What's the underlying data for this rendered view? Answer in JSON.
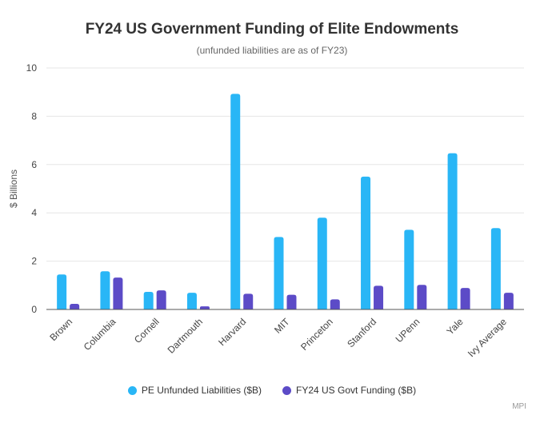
{
  "chart_data": {
    "type": "bar",
    "title": "FY24 US Government Funding of Elite Endowments",
    "subtitle": "(unfunded liabilities are as of FY23)",
    "xlabel": "",
    "ylabel": "$ Billions",
    "ylim": [
      0,
      10
    ],
    "yticks": [
      0,
      2,
      4,
      6,
      8,
      10
    ],
    "grid": true,
    "legend_position": "bottom",
    "categories": [
      "Brown",
      "Columbia",
      "Cornell",
      "Dartmouth",
      "Harvard",
      "MIT",
      "Princeton",
      "Stanford",
      "UPenn",
      "Yale",
      "Ivy Average"
    ],
    "series": [
      {
        "name": "PE Unfunded Liabilities ($B)",
        "color": "#29b6f6",
        "values": [
          1.45,
          1.58,
          0.73,
          0.69,
          8.93,
          3.0,
          3.8,
          5.5,
          3.3,
          6.47,
          3.37
        ]
      },
      {
        "name": "FY24 US Govt Funding ($B)",
        "color": "#5c4bc7",
        "values": [
          0.23,
          1.32,
          0.79,
          0.13,
          0.65,
          0.61,
          0.42,
          0.98,
          1.02,
          0.89,
          0.69
        ]
      }
    ],
    "credit": "MPI"
  }
}
